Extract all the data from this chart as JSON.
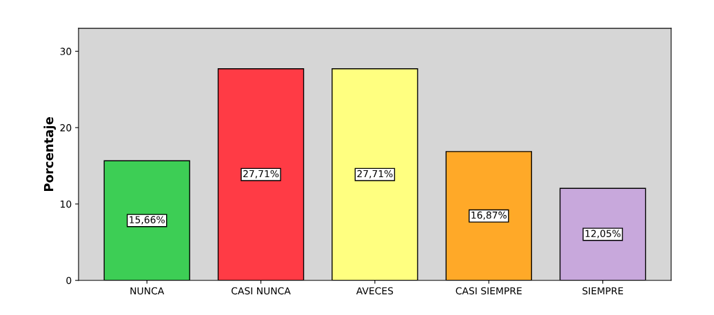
{
  "chart_data": {
    "type": "bar",
    "ylabel": "Porcentaje",
    "categories": [
      "NUNCA",
      "CASI NUNCA",
      "AVECES",
      "CASI SIEMPRE",
      "SIEMPRE"
    ],
    "values": [
      15.66,
      27.71,
      27.71,
      16.87,
      12.05
    ],
    "colors": [
      "#3dce55",
      "#ff3b45",
      "#ffff80",
      "#ffa928",
      "#c8a8dc"
    ],
    "value_labels": [
      "15,66%",
      "27,71%",
      "27,71%",
      "16,87%",
      "12,05%"
    ],
    "ylim": [
      0,
      33
    ],
    "yticks": [
      0,
      10,
      20,
      30
    ],
    "grid": false
  }
}
